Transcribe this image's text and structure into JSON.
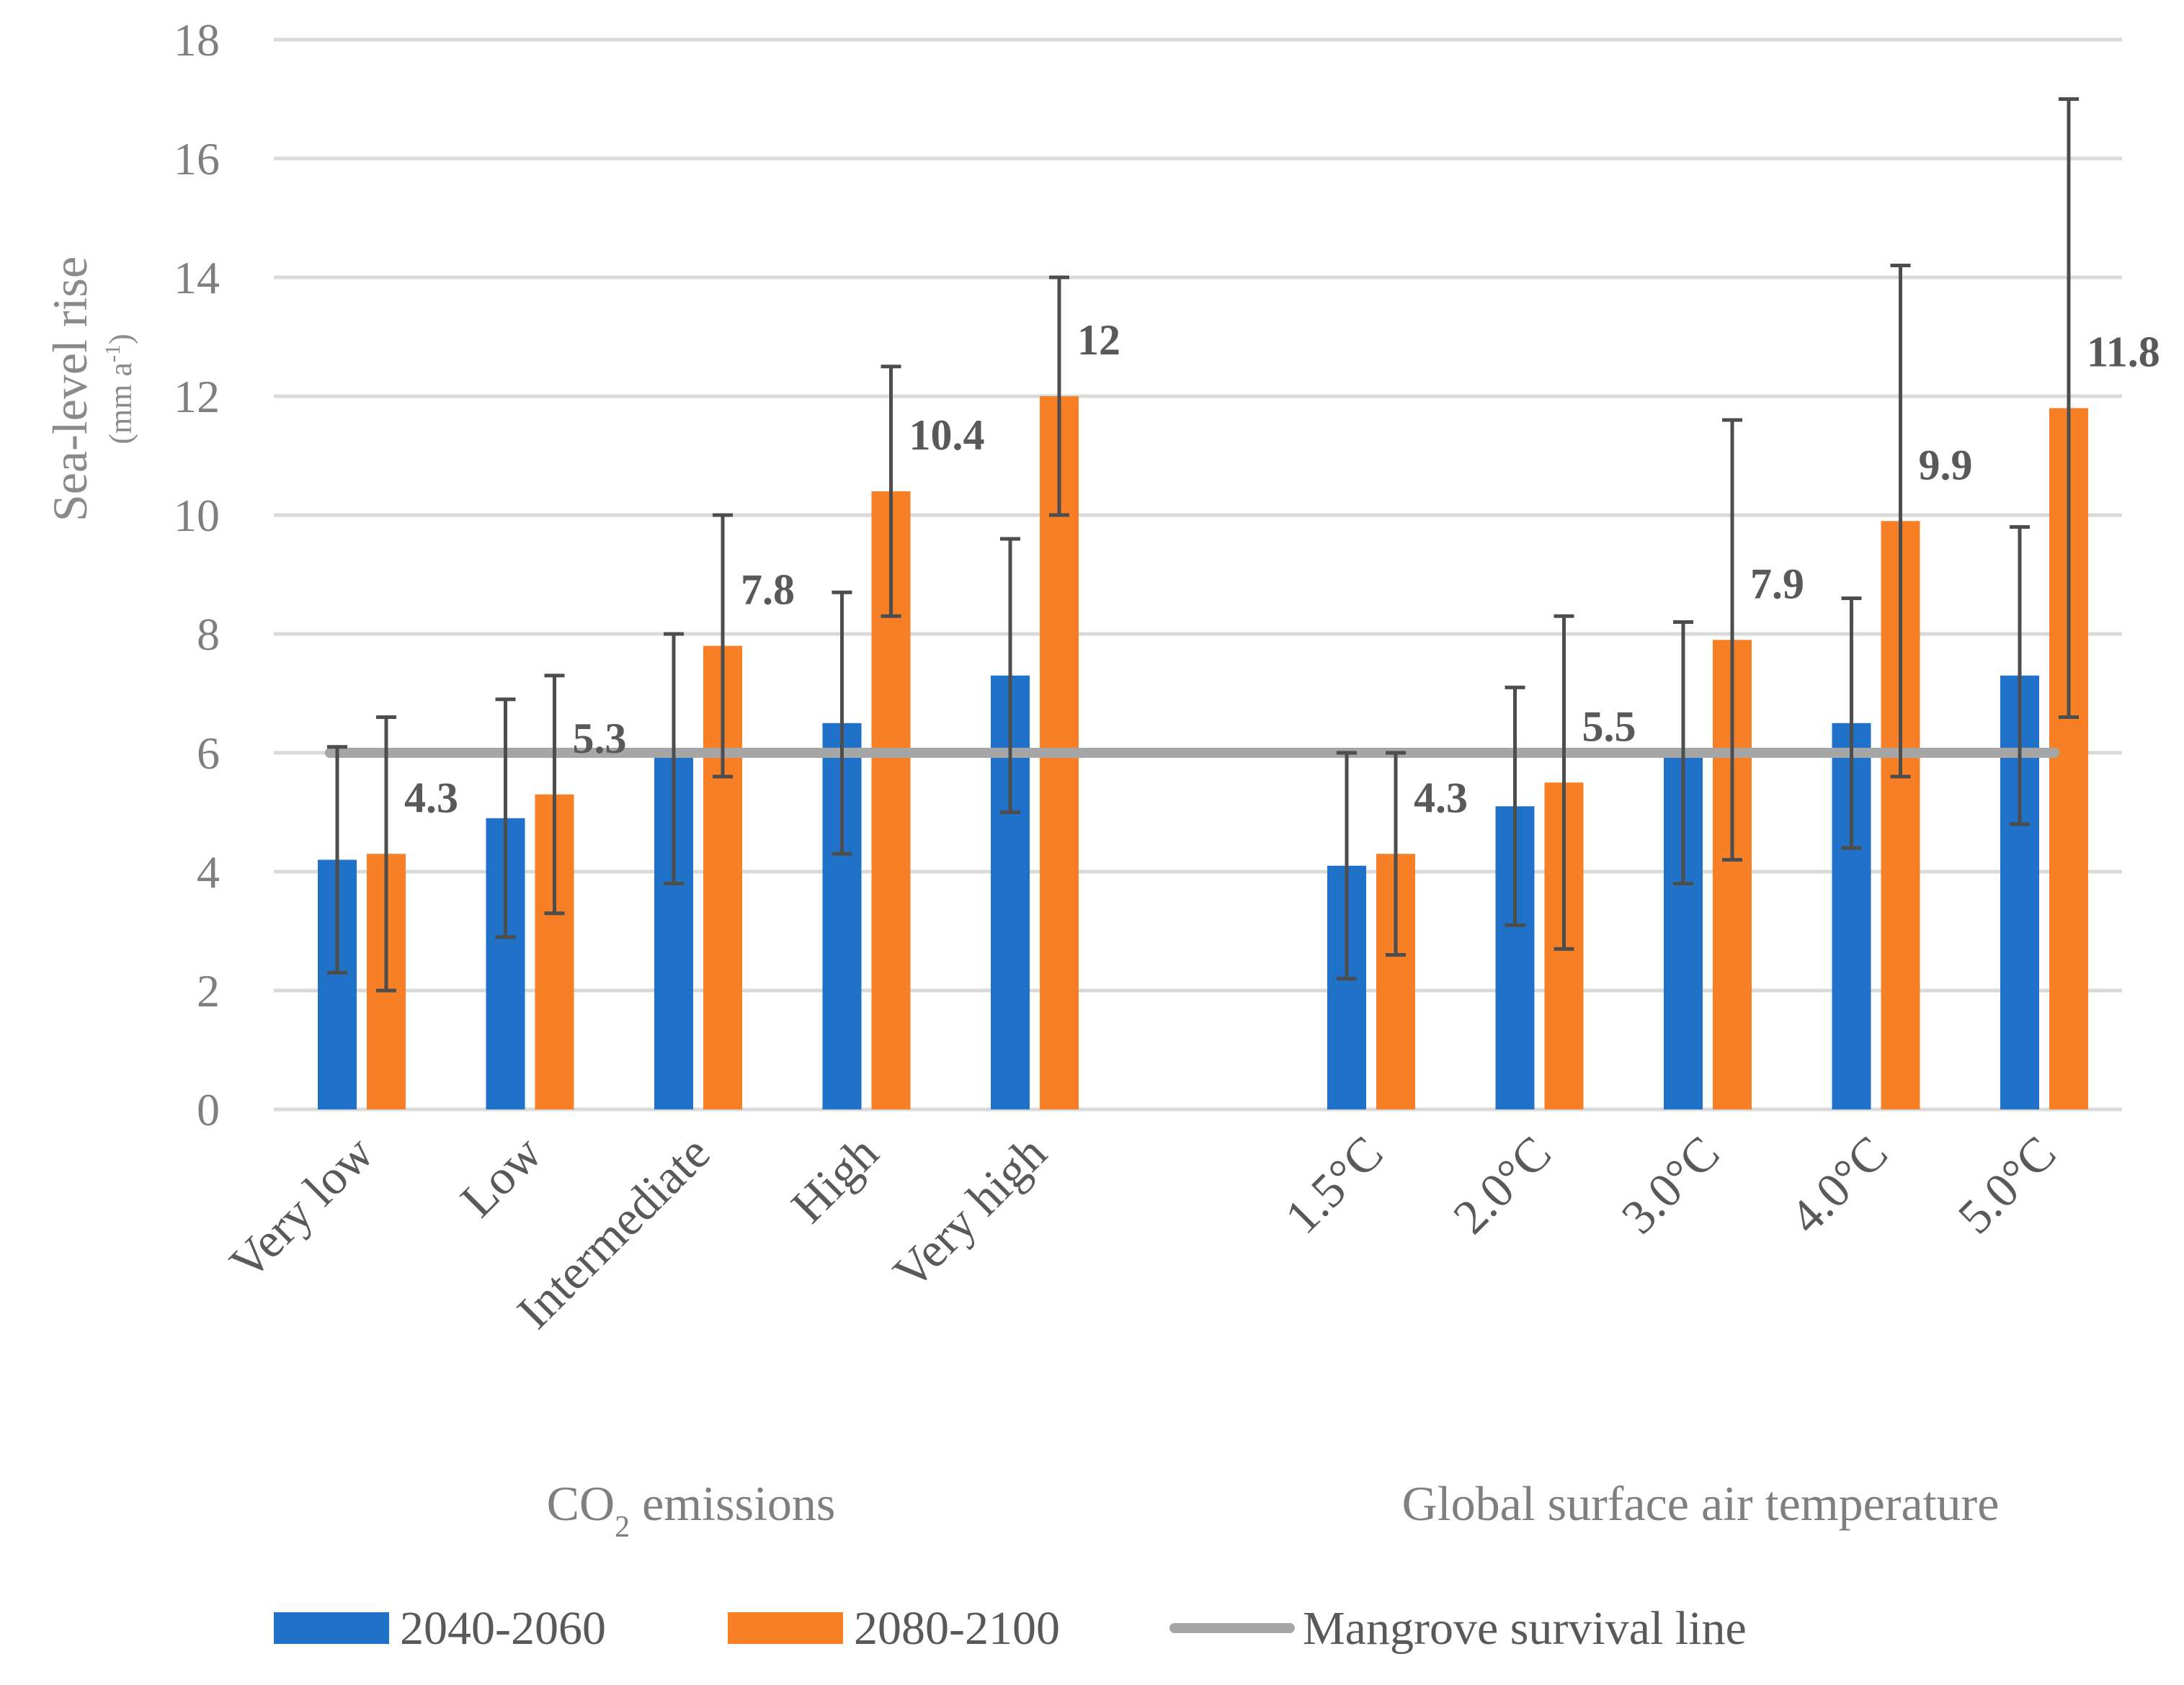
{
  "chart_data": {
    "type": "bar",
    "title": "",
    "ylabel": "Sea-level rise",
    "yunit": {
      "base": "(mm a",
      "sup": "-1",
      "close": ")"
    },
    "ylim": [
      0,
      18
    ],
    "yticks": [
      0,
      2,
      4,
      6,
      8,
      10,
      12,
      14,
      16,
      18
    ],
    "grid": true,
    "groups": [
      {
        "label": {
          "pre": "CO",
          "sub": "2",
          "post": " emissions"
        },
        "categories": [
          "Very low",
          "Low",
          "Intermediate",
          "High",
          "Very high"
        ]
      },
      {
        "label": {
          "pre": "Global surface air temperature",
          "sub": "",
          "post": ""
        },
        "categories": [
          "1.5°C",
          "2.0°C",
          "3.0°C",
          "4.0°C",
          "5.0°C"
        ]
      }
    ],
    "categories": [
      "Very low",
      "Low",
      "Intermediate",
      "High",
      "Very high",
      "",
      "1.5°C",
      "2.0°C",
      "3.0°C",
      "4.0°C",
      "5.0°C"
    ],
    "series": [
      {
        "name": "2040-2060",
        "color": "#1f72c7",
        "values": [
          4.2,
          4.9,
          6.0,
          6.5,
          7.3,
          null,
          4.1,
          5.1,
          6.0,
          6.5,
          7.3
        ],
        "err_low": [
          2.3,
          2.9,
          3.8,
          4.3,
          5.0,
          null,
          2.2,
          3.1,
          3.8,
          4.4,
          4.8
        ],
        "err_high": [
          6.1,
          6.9,
          8.0,
          8.7,
          9.6,
          null,
          6.0,
          7.1,
          8.2,
          8.6,
          9.8
        ],
        "labels": [
          "",
          "",
          "",
          "",
          "",
          "",
          "",
          "",
          "",
          "",
          ""
        ]
      },
      {
        "name": "2080-2100",
        "color": "#f77f26",
        "values": [
          4.3,
          5.3,
          7.8,
          10.4,
          12,
          null,
          4.3,
          5.5,
          7.9,
          9.9,
          11.8
        ],
        "err_low": [
          2.0,
          3.3,
          5.6,
          8.3,
          10.0,
          null,
          2.6,
          2.7,
          4.2,
          5.6,
          6.6
        ],
        "err_high": [
          6.6,
          7.3,
          10.0,
          12.5,
          14.0,
          null,
          6.0,
          8.3,
          11.6,
          14.2,
          17.0
        ],
        "labels": [
          "4.3",
          "5.3",
          "7.8",
          "10.4",
          "12",
          "",
          "4.3",
          "5.5",
          "7.9",
          "9.9",
          "11.8"
        ]
      }
    ],
    "reference_line": {
      "name": "Mangrove survival line",
      "value": 6,
      "color": "#a6a6a6"
    },
    "legend_position": "bottom"
  }
}
